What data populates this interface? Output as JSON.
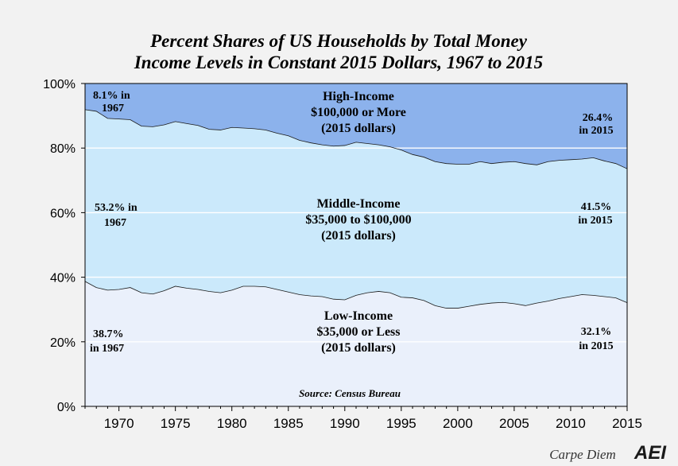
{
  "chart_data": {
    "type": "area",
    "title": [
      "Percent Shares of US Households by Total Money",
      "Income Levels in Constant 2015 Dollars, 1967 to 2015"
    ],
    "xlim": [
      1967,
      2015
    ],
    "ylim": [
      0,
      100
    ],
    "x_ticks": [
      1970,
      1975,
      1980,
      1985,
      1990,
      1995,
      2000,
      2005,
      2010,
      2015
    ],
    "y_ticks": [
      {
        "value": 0,
        "label": "0%"
      },
      {
        "value": 20,
        "label": "20%"
      },
      {
        "value": 40,
        "label": "40%"
      },
      {
        "value": 60,
        "label": "60%"
      },
      {
        "value": 80,
        "label": "80%"
      },
      {
        "value": 100,
        "label": "100%"
      }
    ],
    "x": [
      1967,
      1968,
      1969,
      1970,
      1971,
      1972,
      1973,
      1974,
      1975,
      1976,
      1977,
      1978,
      1979,
      1980,
      1981,
      1982,
      1983,
      1984,
      1985,
      1986,
      1987,
      1988,
      1989,
      1990,
      1991,
      1992,
      1993,
      1994,
      1995,
      1996,
      1997,
      1998,
      1999,
      2000,
      2001,
      2002,
      2003,
      2004,
      2005,
      2006,
      2007,
      2008,
      2009,
      2010,
      2011,
      2012,
      2013,
      2014,
      2015
    ],
    "series": [
      {
        "name": "Low-Income",
        "label": [
          "Low-Income",
          "$35,000 or Less",
          "(2015 dollars)"
        ],
        "color": "#eaf0fb",
        "values": [
          38.7,
          36.8,
          36.0,
          36.2,
          36.8,
          35.2,
          34.8,
          35.8,
          37.2,
          36.6,
          36.2,
          35.6,
          35.2,
          36.0,
          37.2,
          37.2,
          37.0,
          36.2,
          35.4,
          34.6,
          34.2,
          34.0,
          33.2,
          33.0,
          34.4,
          35.2,
          35.6,
          35.2,
          33.8,
          33.6,
          32.8,
          31.2,
          30.4,
          30.4,
          31.0,
          31.6,
          32.0,
          32.2,
          31.8,
          31.2,
          32.0,
          32.6,
          33.4,
          34.0,
          34.6,
          34.4,
          34.0,
          33.6,
          32.1
        ]
      },
      {
        "name": "Middle-Income",
        "label": [
          "Middle-Income",
          "$35,000 to $100,000",
          "(2015 dollars)"
        ],
        "color": "#cbe9fb",
        "values": [
          53.2,
          54.6,
          53.2,
          52.8,
          52.0,
          51.6,
          51.8,
          51.4,
          51.0,
          51.0,
          50.8,
          50.2,
          50.4,
          50.4,
          49.0,
          48.8,
          48.6,
          48.4,
          48.4,
          47.8,
          47.4,
          47.0,
          47.4,
          47.8,
          47.4,
          46.2,
          45.4,
          45.2,
          45.6,
          44.4,
          44.4,
          44.6,
          44.8,
          44.6,
          44.0,
          44.2,
          43.2,
          43.4,
          44.0,
          44.0,
          42.8,
          43.2,
          42.8,
          42.4,
          42.0,
          42.6,
          42.0,
          41.6,
          41.5
        ]
      },
      {
        "name": "High-Income",
        "label": [
          "High-Income",
          "$100,000 or More",
          "(2015 dollars)"
        ],
        "color": "#8cb2ec",
        "values": [
          8.1,
          8.6,
          10.8,
          11.0,
          11.2,
          13.2,
          13.4,
          12.8,
          11.8,
          12.4,
          13.0,
          14.2,
          14.4,
          13.6,
          13.8,
          14.0,
          14.4,
          15.4,
          16.2,
          17.6,
          18.4,
          19.0,
          19.4,
          19.2,
          18.2,
          18.6,
          19.0,
          19.6,
          20.6,
          22.0,
          22.8,
          24.2,
          24.8,
          25.0,
          25.0,
          24.2,
          24.8,
          24.4,
          24.2,
          24.8,
          25.2,
          24.2,
          23.8,
          23.6,
          23.4,
          23.0,
          24.0,
          24.8,
          26.4
        ]
      }
    ],
    "annotations": {
      "low_1967": [
        "38.7%",
        "in 1967"
      ],
      "low_2015": [
        "32.1%",
        "in 2015"
      ],
      "mid_1967": [
        "53.2% in",
        "1967"
      ],
      "mid_2015": [
        "41.5%",
        "in 2015"
      ],
      "high_1967": [
        "8.1% in",
        "1967"
      ],
      "high_2015": [
        "26.4%",
        "in 2015"
      ]
    },
    "source": "Source: Census Bureau"
  },
  "footer": {
    "blog": "Carpe Diem",
    "logo": "AEI"
  }
}
